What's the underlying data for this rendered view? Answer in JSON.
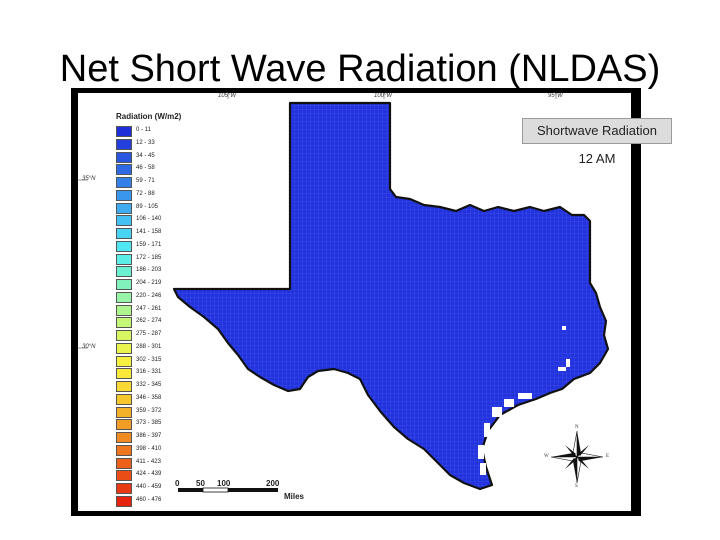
{
  "slide": {
    "title": "Net Short Wave Radiation (NLDAS)"
  },
  "map": {
    "badge": "Shortwave Radiation",
    "time": "12 AM",
    "fill_color": "#2233dd",
    "outline_color": "#111111",
    "longitude_labels": [
      "105°W",
      "100°W",
      "95°W"
    ],
    "latitude_labels": [
      "35°N",
      "30°N"
    ]
  },
  "legend": {
    "title": "Radiation (W/m2)",
    "items": [
      {
        "label": "0 - 11",
        "color": "#1c2fd8"
      },
      {
        "label": "12 - 33",
        "color": "#2440dc"
      },
      {
        "label": "34 - 45",
        "color": "#2a55e0"
      },
      {
        "label": "46 - 58",
        "color": "#2f6ae4"
      },
      {
        "label": "59 - 71",
        "color": "#3580e8"
      },
      {
        "label": "72 - 88",
        "color": "#3a96ec"
      },
      {
        "label": "89 - 105",
        "color": "#3fabf0"
      },
      {
        "label": "106 - 140",
        "color": "#44c0f2"
      },
      {
        "label": "141 - 158",
        "color": "#4ad4f4"
      },
      {
        "label": "159 - 171",
        "color": "#50e6f2"
      },
      {
        "label": "172 - 185",
        "color": "#5aeee6"
      },
      {
        "label": "186 - 203",
        "color": "#6cf0d2"
      },
      {
        "label": "204 - 219",
        "color": "#82f2bd"
      },
      {
        "label": "220 - 246",
        "color": "#98f4a6"
      },
      {
        "label": "247 - 261",
        "color": "#aef58f"
      },
      {
        "label": "262 - 274",
        "color": "#c4f678"
      },
      {
        "label": "275 - 287",
        "color": "#d8f662"
      },
      {
        "label": "288 - 301",
        "color": "#eaf44e"
      },
      {
        "label": "302 - 315",
        "color": "#f6f040"
      },
      {
        "label": "316 - 331",
        "color": "#fae83a"
      },
      {
        "label": "332 - 345",
        "color": "#f8d834"
      },
      {
        "label": "346 - 358",
        "color": "#f6c62e"
      },
      {
        "label": "359 - 372",
        "color": "#f4b22a"
      },
      {
        "label": "373 - 385",
        "color": "#f29e26"
      },
      {
        "label": "386 - 397",
        "color": "#f08a22"
      },
      {
        "label": "398 - 410",
        "color": "#ee761e"
      },
      {
        "label": "411 - 423",
        "color": "#ec621a"
      },
      {
        "label": "424 - 439",
        "color": "#ea4e16"
      },
      {
        "label": "440 - 459",
        "color": "#e83a12"
      },
      {
        "label": "460 - 476",
        "color": "#e6240e"
      }
    ]
  },
  "scale_bar": {
    "ticks": [
      "0",
      "50",
      "100",
      "200"
    ],
    "units": "Miles"
  },
  "compass": {
    "n": "N",
    "s": "S",
    "e": "E",
    "w": "W"
  }
}
